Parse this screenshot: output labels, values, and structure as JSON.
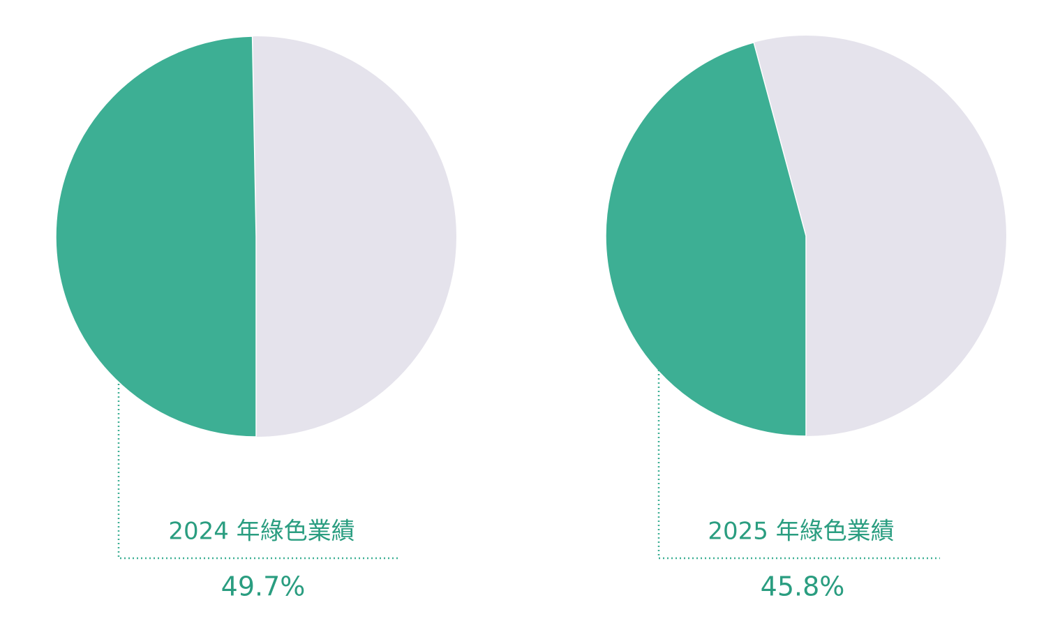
{
  "chart_data": [
    {
      "type": "pie",
      "categories": [
        "2024 年綠色業績"
      ],
      "values": [
        49.7
      ],
      "value_labels": [
        "49.7%"
      ],
      "colors": [
        "#3daf94"
      ],
      "background_color": "#e5e3ec"
    },
    {
      "type": "pie",
      "categories": [
        "2025 年綠色業績"
      ],
      "values": [
        45.8
      ],
      "value_labels": [
        "45.8%"
      ],
      "colors": [
        "#3daf94"
      ],
      "background_color": "#e5e3ec"
    }
  ]
}
